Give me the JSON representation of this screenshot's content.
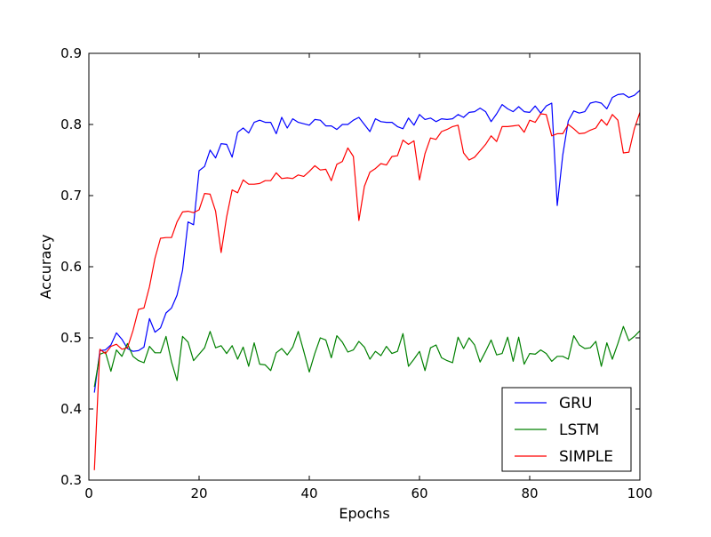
{
  "chart_data": {
    "type": "line",
    "title": "",
    "xlabel": "Epochs",
    "ylabel": "Accuracy",
    "xlim": [
      0,
      100
    ],
    "ylim": [
      0.3,
      0.9
    ],
    "x_ticks": [
      0,
      20,
      40,
      60,
      80,
      100
    ],
    "x_tick_labels": [
      "0",
      "20",
      "40",
      "60",
      "80",
      "100"
    ],
    "y_ticks": [
      0.3,
      0.4,
      0.5,
      0.6,
      0.7,
      0.8,
      0.9
    ],
    "y_tick_labels": [
      "0.3",
      "0.4",
      "0.5",
      "0.6",
      "0.7",
      "0.8",
      "0.9"
    ],
    "grid": false,
    "legend_position": "bottom-right",
    "x": [
      1,
      2,
      3,
      4,
      5,
      6,
      7,
      8,
      9,
      10,
      11,
      12,
      13,
      14,
      15,
      16,
      17,
      18,
      19,
      20,
      21,
      22,
      23,
      24,
      25,
      26,
      27,
      28,
      29,
      30,
      31,
      32,
      33,
      34,
      35,
      36,
      37,
      38,
      39,
      40,
      41,
      42,
      43,
      44,
      45,
      46,
      47,
      48,
      49,
      50,
      51,
      52,
      53,
      54,
      55,
      56,
      57,
      58,
      59,
      60,
      61,
      62,
      63,
      64,
      65,
      66,
      67,
      68,
      69,
      70,
      71,
      72,
      73,
      74,
      75,
      76,
      77,
      78,
      79,
      80,
      81,
      82,
      83,
      84,
      85,
      86,
      87,
      88,
      89,
      90,
      91,
      92,
      93,
      94,
      95,
      96,
      97,
      98,
      99,
      100
    ],
    "series": [
      {
        "name": "GRU",
        "color": "#0000ff",
        "values": [
          0.423,
          0.482,
          0.483,
          0.49,
          0.507,
          0.498,
          0.485,
          0.481,
          0.482,
          0.487,
          0.527,
          0.508,
          0.514,
          0.535,
          0.542,
          0.56,
          0.595,
          0.663,
          0.659,
          0.735,
          0.741,
          0.764,
          0.753,
          0.773,
          0.772,
          0.754,
          0.789,
          0.795,
          0.788,
          0.803,
          0.806,
          0.803,
          0.803,
          0.787,
          0.81,
          0.795,
          0.808,
          0.803,
          0.801,
          0.799,
          0.807,
          0.806,
          0.798,
          0.798,
          0.793,
          0.8,
          0.8,
          0.806,
          0.81,
          0.8,
          0.79,
          0.808,
          0.804,
          0.803,
          0.803,
          0.797,
          0.794,
          0.809,
          0.799,
          0.814,
          0.807,
          0.809,
          0.804,
          0.808,
          0.807,
          0.808,
          0.814,
          0.81,
          0.817,
          0.818,
          0.823,
          0.818,
          0.804,
          0.815,
          0.828,
          0.822,
          0.818,
          0.825,
          0.818,
          0.817,
          0.826,
          0.816,
          0.826,
          0.83,
          0.686,
          0.757,
          0.805,
          0.819,
          0.816,
          0.818,
          0.83,
          0.832,
          0.83,
          0.822,
          0.838,
          0.842,
          0.843,
          0.838,
          0.841,
          0.848
        ]
      },
      {
        "name": "LSTM",
        "color": "#008000",
        "values": [
          0.431,
          0.477,
          0.48,
          0.453,
          0.483,
          0.474,
          0.492,
          0.474,
          0.468,
          0.465,
          0.488,
          0.479,
          0.479,
          0.502,
          0.466,
          0.44,
          0.502,
          0.494,
          0.468,
          0.477,
          0.486,
          0.509,
          0.486,
          0.489,
          0.478,
          0.489,
          0.47,
          0.487,
          0.46,
          0.493,
          0.463,
          0.462,
          0.454,
          0.479,
          0.485,
          0.476,
          0.487,
          0.509,
          0.481,
          0.452,
          0.478,
          0.5,
          0.497,
          0.472,
          0.503,
          0.494,
          0.48,
          0.483,
          0.495,
          0.487,
          0.47,
          0.481,
          0.475,
          0.488,
          0.478,
          0.481,
          0.506,
          0.46,
          0.47,
          0.481,
          0.454,
          0.486,
          0.49,
          0.472,
          0.468,
          0.465,
          0.501,
          0.485,
          0.5,
          0.49,
          0.466,
          0.481,
          0.497,
          0.476,
          0.478,
          0.501,
          0.467,
          0.501,
          0.463,
          0.478,
          0.477,
          0.483,
          0.478,
          0.467,
          0.474,
          0.474,
          0.47,
          0.503,
          0.49,
          0.485,
          0.486,
          0.495,
          0.46,
          0.493,
          0.47,
          0.492,
          0.516,
          0.496,
          0.502,
          0.51
        ]
      },
      {
        "name": "SIMPLE",
        "color": "#ff0000",
        "values": [
          0.314,
          0.484,
          0.478,
          0.488,
          0.491,
          0.484,
          0.486,
          0.51,
          0.54,
          0.542,
          0.572,
          0.612,
          0.64,
          0.641,
          0.641,
          0.663,
          0.677,
          0.678,
          0.676,
          0.68,
          0.703,
          0.702,
          0.678,
          0.62,
          0.67,
          0.708,
          0.704,
          0.722,
          0.716,
          0.716,
          0.717,
          0.721,
          0.721,
          0.732,
          0.724,
          0.725,
          0.724,
          0.729,
          0.727,
          0.734,
          0.742,
          0.736,
          0.737,
          0.721,
          0.744,
          0.748,
          0.767,
          0.755,
          0.665,
          0.713,
          0.733,
          0.738,
          0.745,
          0.743,
          0.755,
          0.756,
          0.778,
          0.772,
          0.777,
          0.722,
          0.759,
          0.781,
          0.779,
          0.79,
          0.793,
          0.797,
          0.799,
          0.76,
          0.75,
          0.754,
          0.763,
          0.772,
          0.784,
          0.776,
          0.797,
          0.797,
          0.798,
          0.799,
          0.789,
          0.806,
          0.803,
          0.815,
          0.814,
          0.784,
          0.787,
          0.787,
          0.8,
          0.794,
          0.787,
          0.788,
          0.792,
          0.795,
          0.807,
          0.799,
          0.814,
          0.806,
          0.76,
          0.761,
          0.794,
          0.817
        ]
      }
    ]
  }
}
